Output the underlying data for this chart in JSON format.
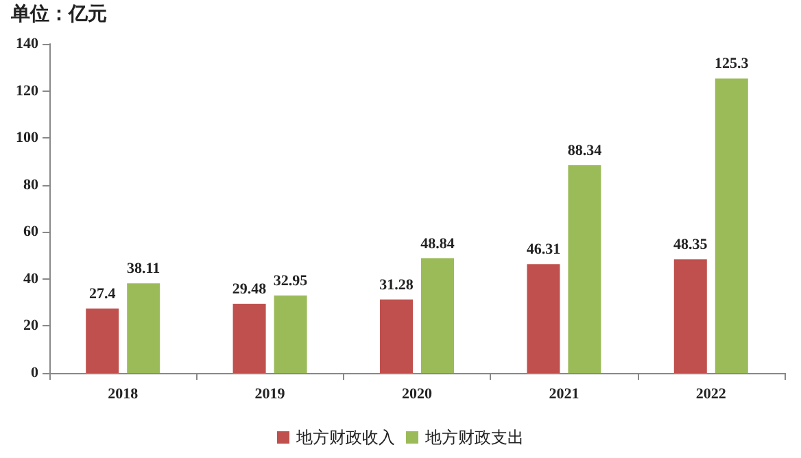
{
  "chart_data": {
    "type": "bar",
    "ylabel": "单位：亿元",
    "categories": [
      "2018",
      "2019",
      "2020",
      "2021",
      "2022"
    ],
    "series": [
      {
        "name": "地方财政收入",
        "color": "#c0504d",
        "values": [
          27.4,
          29.48,
          31.28,
          46.31,
          48.35
        ]
      },
      {
        "name": "地方财政支出",
        "color": "#9bbb59",
        "values": [
          38.11,
          32.95,
          48.84,
          88.34,
          125.3
        ]
      }
    ],
    "ylim": [
      0,
      140
    ],
    "yticks": [
      0,
      20,
      40,
      60,
      80,
      100,
      120,
      140
    ],
    "data_labels": true,
    "legend": "bottom",
    "grid": false
  }
}
